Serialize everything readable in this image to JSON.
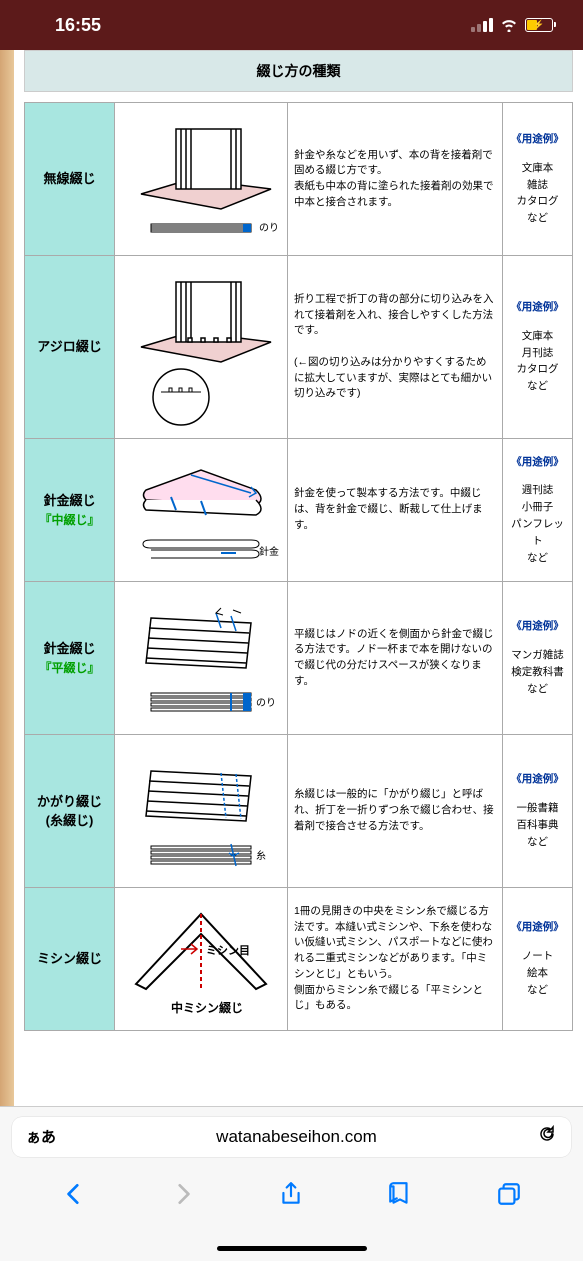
{
  "status": {
    "time": "16:55"
  },
  "page": {
    "title": "綴じ方の種類",
    "rows": [
      {
        "name": "無線綴じ",
        "sub": "",
        "label": "のり",
        "desc": "針金や糸などを用いず、本の背を接着剤で固める綴じ方です。\n表紙も中本の背に塗られた接着剤の効果で中本と接合されます。",
        "usage_header": "《用途例》",
        "usage": "文庫本\n雑誌\nカタログ\nなど"
      },
      {
        "name": "アジロ綴じ",
        "sub": "",
        "label": "",
        "desc": "折り工程で折丁の背の部分に切り込みを入れて接着剤を入れ、接合しやすくした方法です。\n\n(←図の切り込みは分かりやすくするために拡大していますが、実際はとても細かい切り込みです)",
        "usage_header": "《用途例》",
        "usage": "文庫本\n月刊誌\nカタログ\nなど"
      },
      {
        "name": "針金綴じ",
        "sub": "『中綴じ』",
        "label": "針金",
        "desc": "針金を使って製本する方法です。中綴じは、背を針金で綴じ、断裁して仕上げます。",
        "usage_header": "《用途例》",
        "usage": "週刊誌\n小冊子\nパンフレット\nなど"
      },
      {
        "name": "針金綴じ",
        "sub": "『平綴じ』",
        "label": "のり",
        "desc": "平綴じはノドの近くを側面から針金で綴じる方法です。ノド一杯まで本を開けないので綴じ代の分だけスペースが狭くなります。",
        "usage_header": "《用途例》",
        "usage": "マンガ雑誌\n検定教科書\nなど"
      },
      {
        "name": "かがり綴じ\n(糸綴じ)",
        "sub": "",
        "label": "糸",
        "desc": "糸綴じは一般的に「かがり綴じ」と呼ばれ、折丁を一折りずつ糸で綴じ合わせ、接着剤で接合させる方法です。",
        "usage_header": "《用途例》",
        "usage": "一般書籍\n百科事典\nなど"
      },
      {
        "name": "ミシン綴じ",
        "sub": "",
        "label": "ミシン目",
        "caption": "中ミシン綴じ",
        "desc": "1冊の見開きの中央をミシン糸で綴じる方法です。本縫い式ミシンや、下糸を使わない仮縫い式ミシン、パスポートなどに使われる二重式ミシンなどがあります。「中ミシンとじ」ともいう。\n側面からミシン糸で綴じる「平ミシンとじ」もある。",
        "usage_header": "《用途例》",
        "usage": "ノート\n絵本\nなど"
      }
    ]
  },
  "browser": {
    "aa": "ぁあ",
    "url": "watanabeseihon.com"
  },
  "colors": {
    "status_bg": "#5c1a1a",
    "method_bg": "#a8e6e0",
    "title_bg": "#d8e8e8",
    "usage_header": "#003399",
    "sub_green": "#00a000",
    "ios_blue": "#007aff",
    "battery_yellow": "#ffcc00"
  }
}
